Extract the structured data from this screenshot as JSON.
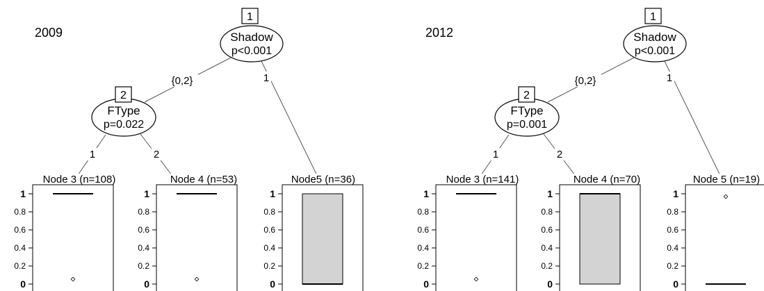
{
  "chart_data": [
    {
      "type": "decision-tree-boxplots",
      "year_label": "2009",
      "root": {
        "id": "1",
        "variable": "Shadow",
        "stat": "p<0.001"
      },
      "inner": {
        "id": "2",
        "variable": "FType",
        "stat": "p=0.022"
      },
      "edges": {
        "root_left": "{0,2}",
        "root_right": "1",
        "inner_left": "1",
        "inner_right": "2"
      },
      "ylim": [
        0,
        1
      ],
      "yticks": [
        "0",
        "0.2",
        "0.4",
        "0.6",
        "0.8",
        "1"
      ],
      "terminals": [
        {
          "title": "Node 3 (n=108)",
          "q1": 1,
          "median": 1,
          "q3": 1,
          "outliers": [
            0
          ]
        },
        {
          "title": "Node 4 (n=53)",
          "q1": 1,
          "median": 1,
          "q3": 1,
          "outliers": [
            0
          ]
        },
        {
          "title": "Node5 (n=36)",
          "q1": 0,
          "median": 0,
          "q3": 1,
          "outliers": []
        }
      ]
    },
    {
      "type": "decision-tree-boxplots",
      "year_label": "2012",
      "root": {
        "id": "1",
        "variable": "Shadow",
        "stat": "p<0.001"
      },
      "inner": {
        "id": "2",
        "variable": "FType",
        "stat": "p=0.001"
      },
      "edges": {
        "root_left": "{0,2}",
        "root_right": "1",
        "inner_left": "1",
        "inner_right": "2"
      },
      "ylim": [
        0,
        1
      ],
      "yticks": [
        "0",
        "0.2",
        "0.4",
        "0.6",
        "0.8",
        "1"
      ],
      "terminals": [
        {
          "title": "Node 3 (n=141)",
          "q1": 1,
          "median": 1,
          "q3": 1,
          "outliers": [
            0
          ]
        },
        {
          "title": "Node 4 (n=70)",
          "q1": 0,
          "median": 1,
          "q3": 1,
          "outliers": []
        },
        {
          "title": "Node 5 (n=19)",
          "q1": 0,
          "median": 0,
          "q3": 0,
          "outliers": [
            1
          ]
        }
      ]
    }
  ],
  "colors": {
    "box_fill": "#d3d3d3",
    "line": "#000000",
    "edge": "#555555"
  }
}
